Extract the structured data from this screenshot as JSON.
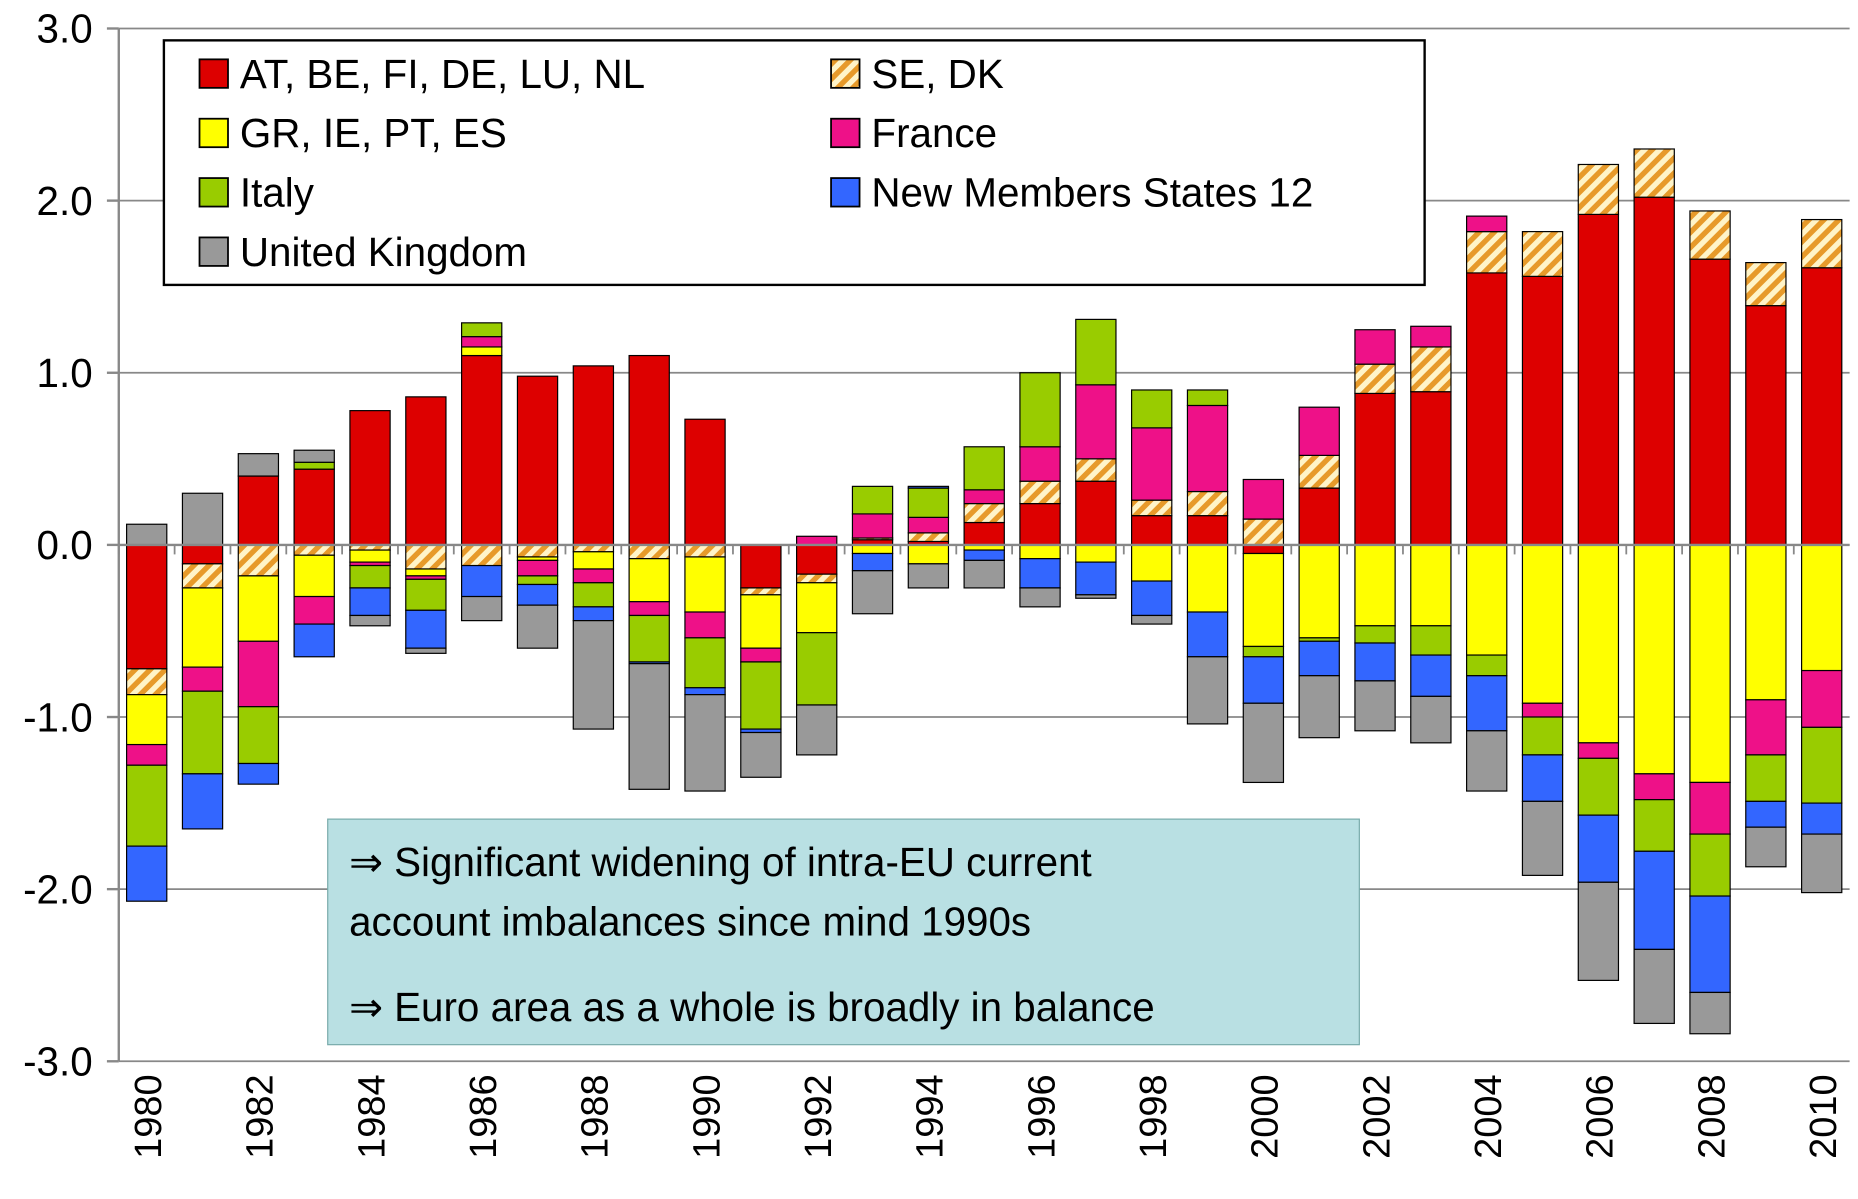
{
  "chart_data": {
    "type": "bar",
    "stacked": true,
    "categories": [
      "1980",
      null,
      "1982",
      null,
      "1984",
      null,
      "1986",
      null,
      "1988",
      null,
      "1990",
      null,
      "1992",
      null,
      "1994",
      null,
      "1996",
      null,
      "1998",
      null,
      "2000",
      null,
      "2002",
      null,
      "2004",
      null,
      "2006",
      null,
      "2008",
      null,
      "2010"
    ],
    "series": [
      {
        "name": "AT, BE, FI, DE, LU, NL",
        "color": "#dd0000",
        "values": [
          -0.72,
          -0.11,
          0.4,
          0.44,
          0.78,
          0.86,
          1.1,
          0.98,
          1.04,
          1.1,
          0.73,
          -0.25,
          -0.17,
          0.03,
          0.02,
          0.13,
          0.24,
          0.37,
          0.17,
          0.17,
          -0.05,
          0.33,
          0.88,
          0.89,
          1.58,
          1.56,
          1.92,
          2.02,
          1.66,
          1.39,
          1.61
        ]
      },
      {
        "name": "SE, DK",
        "color": "#f8c66e",
        "hatch": true,
        "values": [
          -0.15,
          -0.14,
          -0.18,
          -0.06,
          -0.03,
          -0.14,
          -0.12,
          -0.07,
          -0.04,
          -0.08,
          -0.07,
          -0.04,
          -0.05,
          0.01,
          0.05,
          0.11,
          0.13,
          0.13,
          0.09,
          0.14,
          0.15,
          0.19,
          0.17,
          0.26,
          0.24,
          0.26,
          0.29,
          0.28,
          0.28,
          0.25,
          0.28
        ]
      },
      {
        "name": "GR, IE, PT, ES",
        "color": "#ffff00",
        "values": [
          -0.29,
          -0.46,
          -0.38,
          -0.24,
          -0.07,
          -0.04,
          0.05,
          -0.02,
          -0.1,
          -0.25,
          -0.32,
          -0.31,
          -0.29,
          -0.05,
          -0.11,
          -0.03,
          -0.08,
          -0.1,
          -0.21,
          -0.39,
          -0.54,
          -0.54,
          -0.47,
          -0.47,
          -0.64,
          -0.92,
          -1.15,
          -1.33,
          -1.38,
          -0.9,
          -0.73
        ]
      },
      {
        "name": "France",
        "color": "#ee1188",
        "values": [
          -0.12,
          -0.14,
          -0.38,
          -0.16,
          -0.02,
          -0.02,
          0.06,
          -0.09,
          -0.08,
          -0.08,
          -0.15,
          -0.08,
          0.05,
          0.14,
          0.09,
          0.08,
          0.2,
          0.43,
          0.42,
          0.5,
          0.23,
          0.28,
          0.2,
          0.12,
          0.09,
          -0.08,
          -0.09,
          -0.15,
          -0.3,
          -0.32,
          -0.33
        ]
      },
      {
        "name": "Italy",
        "color": "#99cc00",
        "values": [
          -0.47,
          -0.48,
          -0.33,
          0.04,
          -0.13,
          -0.18,
          0.08,
          -0.05,
          -0.14,
          -0.27,
          -0.29,
          -0.39,
          -0.42,
          0.16,
          0.17,
          0.25,
          0.43,
          0.38,
          0.22,
          0.09,
          -0.06,
          -0.02,
          -0.1,
          -0.17,
          -0.12,
          -0.22,
          -0.33,
          -0.3,
          -0.36,
          -0.27,
          -0.44
        ]
      },
      {
        "name": "New Members States 12",
        "color": "#3366ff",
        "values": [
          -0.32,
          -0.32,
          -0.12,
          -0.19,
          -0.16,
          -0.22,
          -0.18,
          -0.12,
          -0.08,
          -0.01,
          -0.04,
          -0.02,
          0,
          -0.1,
          0.01,
          -0.06,
          -0.17,
          -0.19,
          -0.2,
          -0.26,
          -0.27,
          -0.2,
          -0.22,
          -0.24,
          -0.32,
          -0.27,
          -0.39,
          -0.57,
          -0.56,
          -0.15,
          -0.18
        ]
      },
      {
        "name": "United Kingdom",
        "color": "#999999",
        "values": [
          0.12,
          0.3,
          0.13,
          0.07,
          -0.06,
          -0.03,
          -0.14,
          -0.25,
          -0.63,
          -0.73,
          -0.56,
          -0.26,
          -0.29,
          -0.25,
          -0.14,
          -0.16,
          -0.11,
          -0.02,
          -0.05,
          -0.39,
          -0.46,
          -0.36,
          -0.29,
          -0.27,
          -0.35,
          -0.43,
          -0.57,
          -0.43,
          -0.24,
          -0.23,
          -0.34
        ]
      }
    ],
    "ylim": [
      -3,
      3
    ],
    "yticks": [
      {
        "value": -3,
        "label": "-3.0"
      },
      {
        "value": -2,
        "label": "-2.0"
      },
      {
        "value": -1,
        "label": "-1.0"
      },
      {
        "value": 0,
        "label": "0.0"
      },
      {
        "value": 1,
        "label": "1.0"
      },
      {
        "value": 2,
        "label": "2.0"
      },
      {
        "value": 3,
        "label": "3.0"
      }
    ],
    "grid": true,
    "legend": "top-left",
    "annotations": [
      "⇒ Significant widening of intra-EU current",
      "account imbalances since mind 1990s",
      "⇒ Euro area as a whole is broadly in balance"
    ]
  }
}
